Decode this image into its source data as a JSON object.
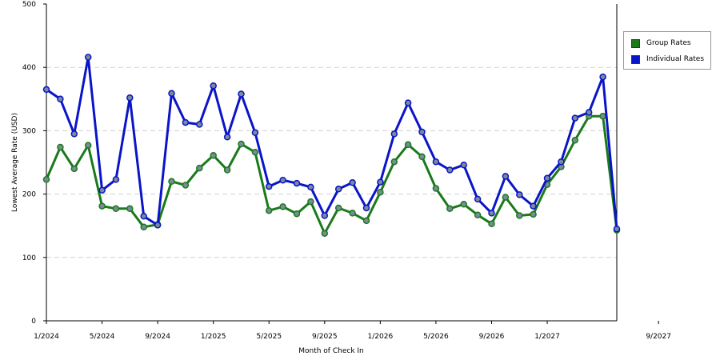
{
  "chart_data": {
    "type": "line",
    "xlabel": "Month of Check In",
    "ylabel": "Lowest Average Rate (USD)",
    "ylim": [
      0,
      500
    ],
    "yticks": [
      0,
      100,
      200,
      300,
      400,
      500
    ],
    "xticks": [
      "1/2024",
      "5/2024",
      "9/2024",
      "1/2025",
      "5/2025",
      "9/2025",
      "1/2026",
      "5/2026",
      "9/2026",
      "1/2027",
      "9/2027"
    ],
    "x": [
      "1/2024",
      "2/2024",
      "3/2024",
      "4/2024",
      "5/2024",
      "6/2024",
      "7/2024",
      "8/2024",
      "9/2024",
      "10/2024",
      "11/2024",
      "12/2024",
      "1/2025",
      "2/2025",
      "3/2025",
      "4/2025",
      "5/2025",
      "6/2025",
      "7/2025",
      "8/2025",
      "9/2025",
      "10/2025",
      "11/2025",
      "12/2025",
      "1/2026",
      "2/2026",
      "3/2026",
      "4/2026",
      "5/2026",
      "6/2026",
      "7/2026",
      "8/2026",
      "9/2026",
      "10/2026",
      "11/2026",
      "12/2026",
      "1/2027",
      "2/2027",
      "3/2027",
      "4/2027",
      "5/2027",
      "6/2027"
    ],
    "grid": "horizontal dashed",
    "legend_position": "right",
    "series": [
      {
        "name": "Group Rates",
        "color": "#1a7a1a",
        "values": [
          223,
          274,
          240,
          277,
          181,
          177,
          177,
          148,
          152,
          220,
          214,
          241,
          261,
          238,
          279,
          266,
          174,
          180,
          169,
          188,
          138,
          178,
          170,
          158,
          203,
          251,
          278,
          259,
          209,
          177,
          184,
          167,
          153,
          195,
          166,
          168,
          215,
          243,
          285,
          323,
          323,
          143
        ]
      },
      {
        "name": "Individual Rates",
        "color": "#0a14c8",
        "values": [
          365,
          350,
          295,
          416,
          206,
          223,
          352,
          165,
          151,
          359,
          313,
          310,
          371,
          290,
          358,
          297,
          212,
          222,
          217,
          211,
          166,
          208,
          218,
          178,
          219,
          295,
          344,
          298,
          251,
          238,
          246,
          192,
          170,
          228,
          199,
          181,
          225,
          251,
          320,
          329,
          385,
          145
        ]
      }
    ]
  },
  "legend": {
    "items": [
      {
        "label": "Group Rates",
        "color": "#1a7a1a"
      },
      {
        "label": "Individual Rates",
        "color": "#0a14c8"
      }
    ]
  }
}
